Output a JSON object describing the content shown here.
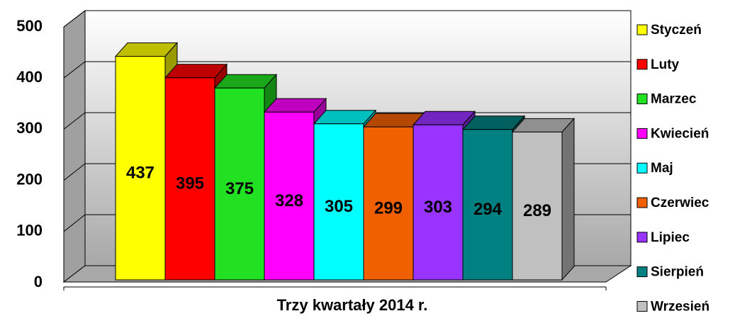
{
  "chart_data": {
    "type": "bar",
    "categories": [
      "Trzy kwartały 2014 r."
    ],
    "series": [
      {
        "name": "Styczeń",
        "color": "#ffff00",
        "values": [
          437
        ]
      },
      {
        "name": "Luty",
        "color": "#ff0000",
        "values": [
          395
        ]
      },
      {
        "name": "Marzec",
        "color": "#22e022",
        "values": [
          375
        ]
      },
      {
        "name": "Kwiecień",
        "color": "#ff00ff",
        "values": [
          328
        ]
      },
      {
        "name": "Maj",
        "color": "#00ffff",
        "values": [
          305
        ]
      },
      {
        "name": "Czerwiec",
        "color": "#f06000",
        "values": [
          299
        ]
      },
      {
        "name": "Lipiec",
        "color": "#9933ff",
        "values": [
          303
        ]
      },
      {
        "name": "Sierpień",
        "color": "#008080",
        "values": [
          294
        ]
      },
      {
        "name": "Wrzesień",
        "color": "#c0c0c0",
        "values": [
          289
        ]
      }
    ],
    "ylim": [
      0,
      500
    ],
    "yticks": [
      0,
      100,
      200,
      300,
      400,
      500
    ],
    "grid": true,
    "legend": "right"
  }
}
